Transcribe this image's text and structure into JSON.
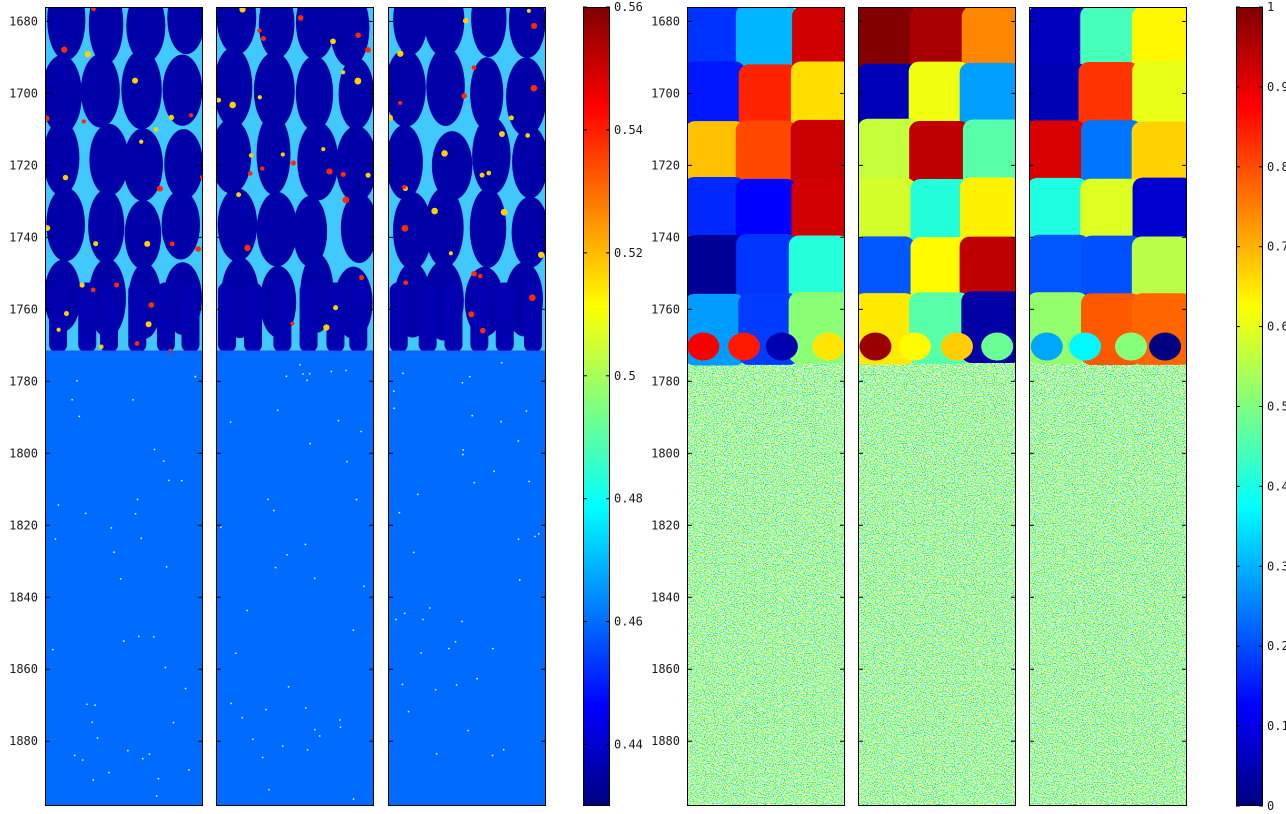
{
  "chart_data": {
    "type": "heatmap",
    "groups": [
      {
        "name": "",
        "kind": "concentration-field",
        "panels": 3,
        "y_axis": {
          "range": [
            1676,
            1898
          ],
          "ticks": [
            "1680",
            "1700",
            "1720",
            "1740",
            "1760",
            "1780",
            "1800",
            "1820",
            "1840",
            "1860",
            "1880"
          ]
        },
        "colorbar": {
          "colormap": "jet",
          "range": [
            0.43,
            0.56
          ],
          "ticks": [
            "0.44",
            "0.46",
            "0.48",
            "0.5",
            "0.52",
            "0.54",
            "0.56"
          ]
        },
        "interface_y": 1772,
        "background_value": 0.46
      },
      {
        "name": "",
        "kind": "orientation-field",
        "panels": 3,
        "y_axis": {
          "range": [
            1676,
            1898
          ],
          "ticks": [
            "1680",
            "1700",
            "1720",
            "1740",
            "1760",
            "1780",
            "1800",
            "1820",
            "1840",
            "1860",
            "1880"
          ]
        },
        "colorbar": {
          "colormap": "jet",
          "range": [
            0,
            1
          ],
          "ticks": [
            "0",
            "0.1",
            "0.2",
            "0.3",
            "0.4",
            "0.5",
            "0.6",
            "0.7",
            "0.8",
            "0.9",
            "1"
          ]
        },
        "interface_y": 1772,
        "background": "random-noise"
      }
    ],
    "grid": false,
    "legend": "none"
  },
  "colors": {
    "jet_stops": [
      "#00007f",
      "#0000ff",
      "#0080ff",
      "#00ffff",
      "#80ff80",
      "#ffff00",
      "#ff8000",
      "#ff0000",
      "#7f0000"
    ],
    "frame": "#000000",
    "text": "#1a1a1a"
  }
}
